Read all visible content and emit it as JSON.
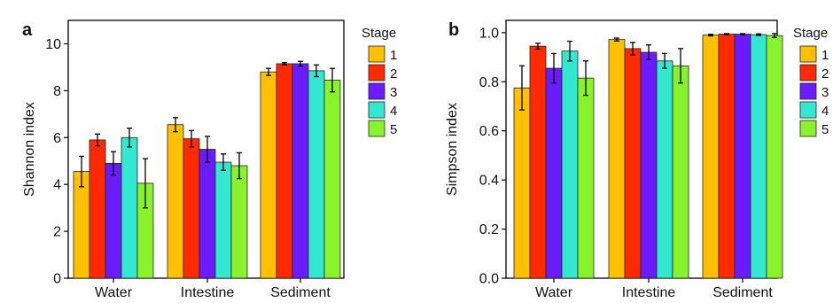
{
  "chart_data": [
    {
      "panel_label": "a",
      "type": "bar",
      "ylabel": "Shannon index",
      "ylim": [
        0,
        11
      ],
      "yticks": [
        "0",
        "2",
        "4",
        "6",
        "8",
        "10"
      ],
      "categories": [
        "Water",
        "Intestine",
        "Sediment"
      ],
      "legend_title": "Stage",
      "legend_placement": "right",
      "grid": false,
      "series": [
        {
          "name": "1",
          "color": "#FFC000",
          "values": [
            4.55,
            6.55,
            8.8
          ],
          "errors": [
            0.65,
            0.3,
            0.15
          ]
        },
        {
          "name": "2",
          "color": "#FF2A00",
          "values": [
            5.9,
            5.95,
            9.15
          ],
          "errors": [
            0.25,
            0.35,
            0.05
          ]
        },
        {
          "name": "3",
          "color": "#6A1CFF",
          "values": [
            4.9,
            5.5,
            9.15
          ],
          "errors": [
            0.5,
            0.55,
            0.1
          ]
        },
        {
          "name": "4",
          "color": "#33E8D0",
          "values": [
            6.0,
            4.95,
            8.85
          ],
          "errors": [
            0.4,
            0.35,
            0.25
          ]
        },
        {
          "name": "5",
          "color": "#88F22A",
          "values": [
            4.05,
            4.8,
            8.45
          ],
          "errors": [
            1.05,
            0.55,
            0.5
          ]
        }
      ]
    },
    {
      "panel_label": "b",
      "type": "bar",
      "ylabel": "Simpson index",
      "ylim": [
        0,
        1.05
      ],
      "yticks": [
        "0.0",
        "0.2",
        "0.4",
        "0.6",
        "0.8",
        "1.0"
      ],
      "categories": [
        "Water",
        "Intestine",
        "Sediment"
      ],
      "legend_title": "Stage",
      "legend_placement": "right",
      "grid": false,
      "series": [
        {
          "name": "1",
          "color": "#FFC000",
          "values": [
            0.775,
            0.972,
            0.99
          ],
          "errors": [
            0.09,
            0.006,
            0.003
          ]
        },
        {
          "name": "2",
          "color": "#FF2A00",
          "values": [
            0.945,
            0.935,
            0.994
          ],
          "errors": [
            0.012,
            0.025,
            0.002
          ]
        },
        {
          "name": "3",
          "color": "#6A1CFF",
          "values": [
            0.855,
            0.92,
            0.994
          ],
          "errors": [
            0.06,
            0.03,
            0.002
          ]
        },
        {
          "name": "4",
          "color": "#33E8D0",
          "values": [
            0.925,
            0.885,
            0.992
          ],
          "errors": [
            0.04,
            0.03,
            0.003
          ]
        },
        {
          "name": "5",
          "color": "#88F22A",
          "values": [
            0.815,
            0.865,
            0.988
          ],
          "errors": [
            0.07,
            0.07,
            0.008
          ]
        }
      ]
    }
  ]
}
